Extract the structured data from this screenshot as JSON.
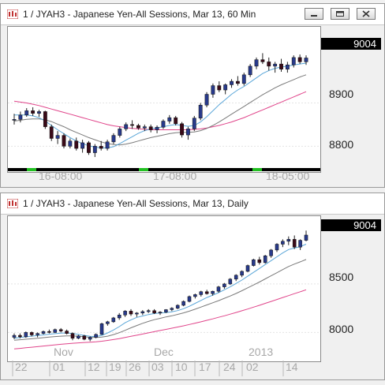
{
  "colors": {
    "up": "#283a8c",
    "down": "#3a0a18",
    "ma_fast": "#5aa6d8",
    "ma_mid": "#7a7a7a",
    "ma_slow": "#e0448a",
    "price_box_bg": "#000000",
    "session_bar": "#000000",
    "session_green": "#22c022"
  },
  "windows": [
    {
      "title": "1 / JYAH3 - Japanese Yen-All Sessions, Mar 13, 60 Min",
      "icons": [
        "chart-app-icon",
        "minimize-icon",
        "restore-icon",
        "close-icon"
      ],
      "last_price": "9004",
      "y_ticks": [
        "8900",
        "8800"
      ],
      "x_ticks": [
        "16-08:00",
        "17-08:00",
        "18-05:00"
      ],
      "chart_data": {
        "type": "candlestick",
        "y_tick_values": [
          8900,
          8800
        ],
        "ylim": [
          8755,
          9065
        ],
        "candles_ohlc": [
          [
            8860,
            8875,
            8850,
            8862
          ],
          [
            8862,
            8880,
            8855,
            8872
          ],
          [
            8872,
            8888,
            8868,
            8882
          ],
          [
            8882,
            8890,
            8870,
            8876
          ],
          [
            8876,
            8884,
            8868,
            8880
          ],
          [
            8880,
            8882,
            8840,
            8845
          ],
          [
            8845,
            8850,
            8812,
            8818
          ],
          [
            8818,
            8835,
            8805,
            8825
          ],
          [
            8825,
            8830,
            8795,
            8800
          ],
          [
            8800,
            8818,
            8795,
            8812
          ],
          [
            8812,
            8820,
            8790,
            8795
          ],
          [
            8795,
            8815,
            8785,
            8808
          ],
          [
            8808,
            8812,
            8780,
            8785
          ],
          [
            8785,
            8805,
            8775,
            8800
          ],
          [
            8800,
            8812,
            8790,
            8795
          ],
          [
            8795,
            8815,
            8790,
            8810
          ],
          [
            8810,
            8830,
            8805,
            8825
          ],
          [
            8825,
            8845,
            8820,
            8840
          ],
          [
            8840,
            8855,
            8835,
            8850
          ],
          [
            8850,
            8860,
            8840,
            8848
          ],
          [
            8848,
            8852,
            8838,
            8842
          ],
          [
            8842,
            8850,
            8835,
            8845
          ],
          [
            8845,
            8850,
            8832,
            8838
          ],
          [
            8838,
            8848,
            8830,
            8844
          ],
          [
            8844,
            8862,
            8840,
            8858
          ],
          [
            8858,
            8872,
            8852,
            8866
          ],
          [
            8866,
            8870,
            8848,
            8852
          ],
          [
            8852,
            8856,
            8820,
            8826
          ],
          [
            8826,
            8845,
            8815,
            8840
          ],
          [
            8840,
            8870,
            8835,
            8865
          ],
          [
            8865,
            8900,
            8860,
            8895
          ],
          [
            8895,
            8925,
            8890,
            8920
          ],
          [
            8920,
            8945,
            8912,
            8940
          ],
          [
            8940,
            8950,
            8925,
            8930
          ],
          [
            8930,
            8945,
            8920,
            8942
          ],
          [
            8942,
            8955,
            8935,
            8950
          ],
          [
            8950,
            8962,
            8940,
            8945
          ],
          [
            8945,
            8970,
            8940,
            8965
          ],
          [
            8965,
            8990,
            8960,
            8985
          ],
          [
            8985,
            9005,
            8978,
            9000
          ],
          [
            9000,
            9015,
            8990,
            8995
          ],
          [
            8995,
            9005,
            8975,
            8985
          ],
          [
            8985,
            8995,
            8970,
            8990
          ],
          [
            8990,
            9002,
            8972,
            8978
          ],
          [
            8978,
            8995,
            8970,
            8988
          ],
          [
            8988,
            9010,
            8982,
            9005
          ],
          [
            9005,
            9012,
            8990,
            8995
          ],
          [
            8995,
            9010,
            8988,
            9004
          ]
        ],
        "ma_fast": [
          8872,
          8872,
          8872,
          8870,
          8866,
          8858,
          8848,
          8838,
          8829,
          8820,
          8812,
          8806,
          8801,
          8798,
          8796,
          8796,
          8799,
          8806,
          8814,
          8822,
          8830,
          8836,
          8840,
          8842,
          8845,
          8848,
          8850,
          8848,
          8846,
          8848,
          8856,
          8868,
          8882,
          8896,
          8908,
          8920,
          8930,
          8938,
          8948,
          8958,
          8968,
          8975,
          8980,
          8983,
          8985,
          8988,
          8990,
          8992
        ],
        "ma_mid": [
          8858,
          8860,
          8862,
          8863,
          8863,
          8861,
          8857,
          8851,
          8845,
          8838,
          8832,
          8826,
          8820,
          8815,
          8810,
          8806,
          8804,
          8803,
          8805,
          8808,
          8812,
          8816,
          8820,
          8823,
          8826,
          8829,
          8831,
          8832,
          8832,
          8833,
          8836,
          8841,
          8848,
          8856,
          8865,
          8874,
          8883,
          8892,
          8901,
          8910,
          8919,
          8927,
          8935,
          8942,
          8948,
          8954,
          8960,
          8965
        ],
        "ma_slow": [
          8904,
          8902,
          8900,
          8897,
          8894,
          8890,
          8886,
          8882,
          8878,
          8874,
          8870,
          8866,
          8862,
          8858,
          8854,
          8850,
          8847,
          8845,
          8843,
          8841,
          8840,
          8839,
          8838,
          8838,
          8838,
          8838,
          8838,
          8838,
          8838,
          8839,
          8840,
          8842,
          8845,
          8848,
          8852,
          8856,
          8861,
          8866,
          8872,
          8878,
          8884,
          8890,
          8896,
          8902,
          8908,
          8914,
          8920,
          8926
        ]
      }
    },
    {
      "title": "1 / JYAH3 - Japanese Yen-All Sessions, Mar 13, Daily",
      "icons": [
        "chart-app-icon",
        "minimize-icon",
        "restore-icon",
        "close-icon"
      ],
      "last_price": "9004",
      "y_ticks": [
        "8500",
        "8000"
      ],
      "x_ticks_upper": [
        "Nov",
        "Dec",
        "2013"
      ],
      "x_ticks_lower": [
        "22",
        "01",
        "12",
        "19",
        "26",
        "03",
        "10",
        "17",
        "24",
        "02",
        "14"
      ],
      "chart_data": {
        "type": "candlestick",
        "y_tick_values": [
          8500,
          8000
        ],
        "ylim": [
          7800,
          9150
        ],
        "candles_ohlc": [
          [
            7950,
            7990,
            7930,
            7970
          ],
          [
            7970,
            7990,
            7940,
            7955
          ],
          [
            7955,
            8010,
            7945,
            8000
          ],
          [
            8000,
            8010,
            7960,
            7975
          ],
          [
            7975,
            8000,
            7950,
            7990
          ],
          [
            7990,
            8020,
            7980,
            8010
          ],
          [
            8010,
            8030,
            7990,
            8000
          ],
          [
            8000,
            8040,
            7995,
            8030
          ],
          [
            8030,
            8045,
            8000,
            8015
          ],
          [
            8015,
            8030,
            7980,
            7990
          ],
          [
            7990,
            8000,
            7920,
            7940
          ],
          [
            7940,
            7975,
            7930,
            7965
          ],
          [
            7965,
            7975,
            7920,
            7930
          ],
          [
            7930,
            7960,
            7910,
            7950
          ],
          [
            7950,
            7990,
            7940,
            7980
          ],
          [
            7980,
            8100,
            7975,
            8090
          ],
          [
            8090,
            8120,
            8070,
            8110
          ],
          [
            8110,
            8160,
            8100,
            8150
          ],
          [
            8150,
            8200,
            8130,
            8180
          ],
          [
            8180,
            8230,
            8160,
            8220
          ],
          [
            8220,
            8240,
            8170,
            8190
          ],
          [
            8190,
            8210,
            8160,
            8200
          ],
          [
            8200,
            8230,
            8180,
            8215
          ],
          [
            8215,
            8240,
            8200,
            8225
          ],
          [
            8225,
            8240,
            8190,
            8200
          ],
          [
            8200,
            8220,
            8180,
            8210
          ],
          [
            8210,
            8240,
            8200,
            8235
          ],
          [
            8235,
            8260,
            8220,
            8250
          ],
          [
            8250,
            8290,
            8240,
            8280
          ],
          [
            8280,
            8330,
            8270,
            8320
          ],
          [
            8320,
            8380,
            8310,
            8370
          ],
          [
            8370,
            8400,
            8350,
            8390
          ],
          [
            8390,
            8430,
            8370,
            8420
          ],
          [
            8420,
            8440,
            8390,
            8400
          ],
          [
            8400,
            8430,
            8380,
            8425
          ],
          [
            8425,
            8480,
            8410,
            8470
          ],
          [
            8470,
            8510,
            8450,
            8500
          ],
          [
            8500,
            8560,
            8490,
            8550
          ],
          [
            8550,
            8600,
            8530,
            8590
          ],
          [
            8590,
            8640,
            8570,
            8630
          ],
          [
            8630,
            8700,
            8620,
            8690
          ],
          [
            8690,
            8760,
            8680,
            8750
          ],
          [
            8750,
            8780,
            8700,
            8720
          ],
          [
            8720,
            8800,
            8710,
            8790
          ],
          [
            8790,
            8860,
            8770,
            8850
          ],
          [
            8850,
            8920,
            8830,
            8910
          ],
          [
            8910,
            8960,
            8880,
            8940
          ],
          [
            8940,
            8990,
            8900,
            8960
          ],
          [
            8960,
            9000,
            8860,
            8880
          ],
          [
            8880,
            8960,
            8850,
            8950
          ],
          [
            8950,
            9050,
            8940,
            9004
          ]
        ],
        "ma_fast": [
          7940,
          7948,
          7955,
          7962,
          7968,
          7975,
          7982,
          7988,
          7993,
          7995,
          7990,
          7980,
          7970,
          7960,
          7958,
          7970,
          7995,
          8025,
          8060,
          8100,
          8130,
          8155,
          8170,
          8185,
          8195,
          8200,
          8205,
          8212,
          8225,
          8245,
          8270,
          8300,
          8330,
          8360,
          8385,
          8410,
          8440,
          8470,
          8505,
          8540,
          8580,
          8620,
          8660,
          8700,
          8740,
          8780,
          8820,
          8855,
          8870,
          8885,
          8910
        ],
        "ma_mid": [
          7920,
          7925,
          7930,
          7935,
          7940,
          7946,
          7952,
          7958,
          7962,
          7965,
          7964,
          7960,
          7955,
          7950,
          7948,
          7952,
          7962,
          7978,
          7998,
          8022,
          8048,
          8072,
          8094,
          8114,
          8132,
          8146,
          8160,
          8172,
          8186,
          8202,
          8220,
          8240,
          8262,
          8284,
          8306,
          8328,
          8352,
          8376,
          8402,
          8430,
          8460,
          8490,
          8520,
          8552,
          8584,
          8616,
          8648,
          8680,
          8705,
          8728,
          8752
        ],
        "ma_slow": [
          7830,
          7836,
          7842,
          7848,
          7854,
          7860,
          7866,
          7872,
          7878,
          7884,
          7889,
          7893,
          7897,
          7900,
          7904,
          7910,
          7918,
          7927,
          7937,
          7948,
          7960,
          7972,
          7984,
          7996,
          8008,
          8020,
          8032,
          8044,
          8056,
          8068,
          8082,
          8096,
          8110,
          8125,
          8140,
          8156,
          8172,
          8189,
          8206,
          8224,
          8242,
          8261,
          8280,
          8300,
          8320,
          8340,
          8360,
          8380,
          8400,
          8420,
          8440
        ]
      }
    }
  ]
}
